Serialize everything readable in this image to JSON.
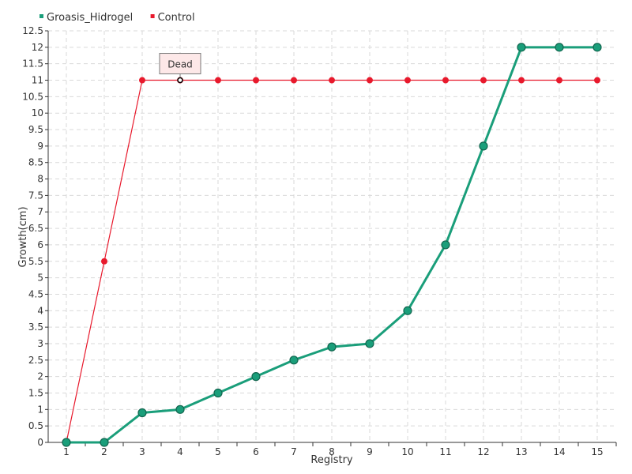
{
  "chart_data": {
    "type": "line",
    "title": "",
    "xlabel": "Registry",
    "ylabel": "Growth(cm)",
    "categories": [
      "1",
      "2",
      "3",
      "4",
      "5",
      "6",
      "7",
      "8",
      "9",
      "10",
      "11",
      "12",
      "13",
      "14",
      "15"
    ],
    "ylim": [
      0,
      12.5
    ],
    "ytick_step": 0.5,
    "ytick_labels": [
      "0",
      "0.5",
      "1",
      "1.5",
      "2",
      "2.5",
      "3",
      "3.5",
      "4",
      "4.5",
      "5",
      "5.5",
      "6",
      "6.5",
      "7",
      "7.5",
      "8",
      "8.5",
      "9",
      "9.5",
      "10",
      "10.5",
      "11",
      "11.5",
      "12",
      "12.5"
    ],
    "grid": true,
    "legend_position": "top-left",
    "series": [
      {
        "name": "Groasis_Hidrogel",
        "color": "#1a9e7a",
        "values": [
          0,
          0,
          0.9,
          1,
          1.5,
          2,
          2.5,
          2.9,
          3,
          4,
          6,
          9,
          12,
          12,
          12
        ]
      },
      {
        "name": "Control",
        "color": "#e8192c",
        "values": [
          0,
          5.5,
          11,
          11,
          11,
          11,
          11,
          11,
          11,
          11,
          11,
          11,
          11,
          11,
          11
        ]
      }
    ],
    "annotations": [
      {
        "text": "Dead",
        "series": "Control",
        "category": "4",
        "value": 11
      }
    ]
  }
}
